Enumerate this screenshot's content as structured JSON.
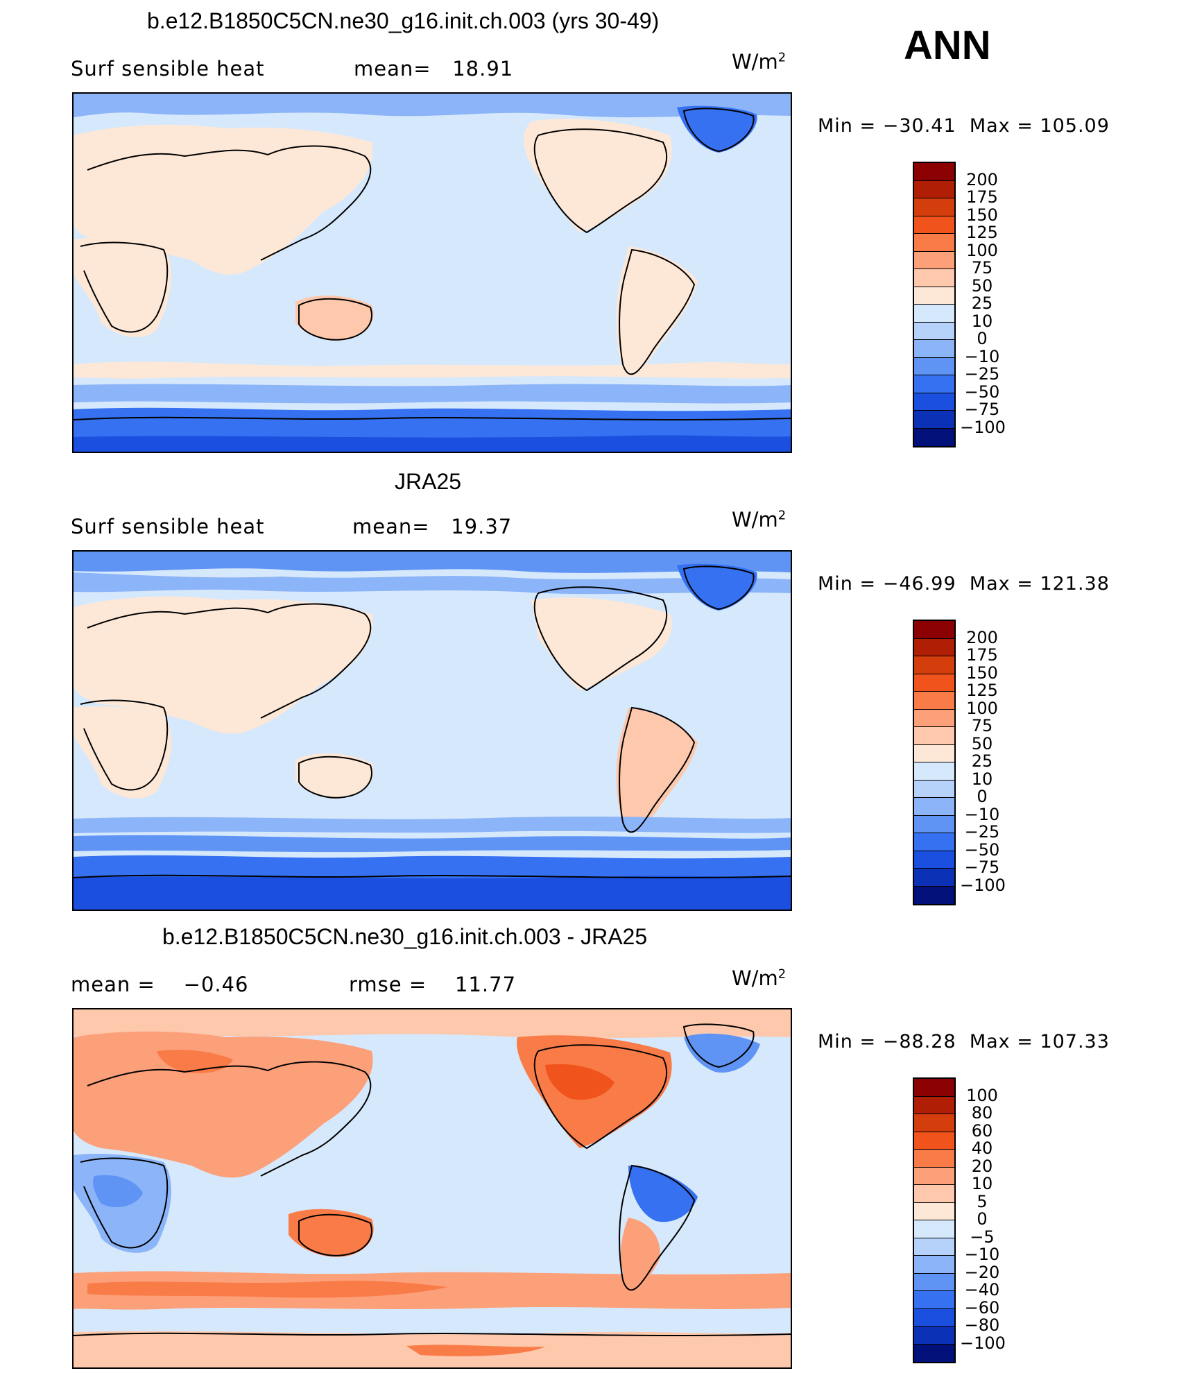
{
  "season": "ANN",
  "units_base": "W/m",
  "units_exp": "2",
  "panels": [
    {
      "title": "b.e12.B1850C5CN.ne30_g16.init.ch.003 (yrs 30-49)",
      "left_label": "Surf  sensible  heat",
      "stat1_label": "mean=",
      "stat1_value": "18.91",
      "min_label": "Min",
      "min_value": "−30.41",
      "max_label": "Max",
      "max_value": "105.09",
      "colorbar": {
        "levels": [
          "200",
          "175",
          "150",
          "125",
          "100",
          "75",
          "50",
          "25",
          "10",
          "0",
          "−10",
          "−25",
          "−50",
          "−75",
          "−100"
        ],
        "colors": [
          "#8b0000",
          "#b01e05",
          "#d43d0c",
          "#f0541c",
          "#f97c48",
          "#fca07a",
          "#fdc8ac",
          "#fde8d8",
          "#d6e8fc",
          "#b6d2fb",
          "#8cb4f8",
          "#5f94f5",
          "#3571f0",
          "#1b4fe0",
          "#0a31b6",
          "#02117a"
        ]
      }
    },
    {
      "title": "JRA25",
      "left_label": "Surf  sensible  heat",
      "stat1_label": "mean=",
      "stat1_value": "19.37",
      "min_label": "Min",
      "min_value": "−46.99",
      "max_label": "Max",
      "max_value": "121.38",
      "colorbar": {
        "levels": [
          "200",
          "175",
          "150",
          "125",
          "100",
          "75",
          "50",
          "25",
          "10",
          "0",
          "−10",
          "−25",
          "−50",
          "−75",
          "−100"
        ],
        "colors": [
          "#8b0000",
          "#b01e05",
          "#d43d0c",
          "#f0541c",
          "#f97c48",
          "#fca07a",
          "#fdc8ac",
          "#fde8d8",
          "#d6e8fc",
          "#b6d2fb",
          "#8cb4f8",
          "#5f94f5",
          "#3571f0",
          "#1b4fe0",
          "#0a31b6",
          "#02117a"
        ]
      }
    },
    {
      "title": "b.e12.B1850C5CN.ne30_g16.init.ch.003 - JRA25",
      "stat1_label": "mean  =",
      "stat1_value": "−0.46",
      "stat2_label": "rmse  =",
      "stat2_value": "11.77",
      "min_label": "Min",
      "min_value": "−88.28",
      "max_label": "Max",
      "max_value": "107.33",
      "colorbar": {
        "levels": [
          "100",
          "80",
          "60",
          "40",
          "20",
          "10",
          "5",
          "0",
          "−5",
          "−10",
          "−20",
          "−40",
          "−60",
          "−80",
          "−100"
        ],
        "colors": [
          "#8b0000",
          "#b01e05",
          "#d43d0c",
          "#f0541c",
          "#f97c48",
          "#fca07a",
          "#fdc8ac",
          "#fde8d8",
          "#d6e8fc",
          "#b6d2fb",
          "#8cb4f8",
          "#5f94f5",
          "#3571f0",
          "#1b4fe0",
          "#0a31b6",
          "#02117a"
        ]
      }
    }
  ]
}
